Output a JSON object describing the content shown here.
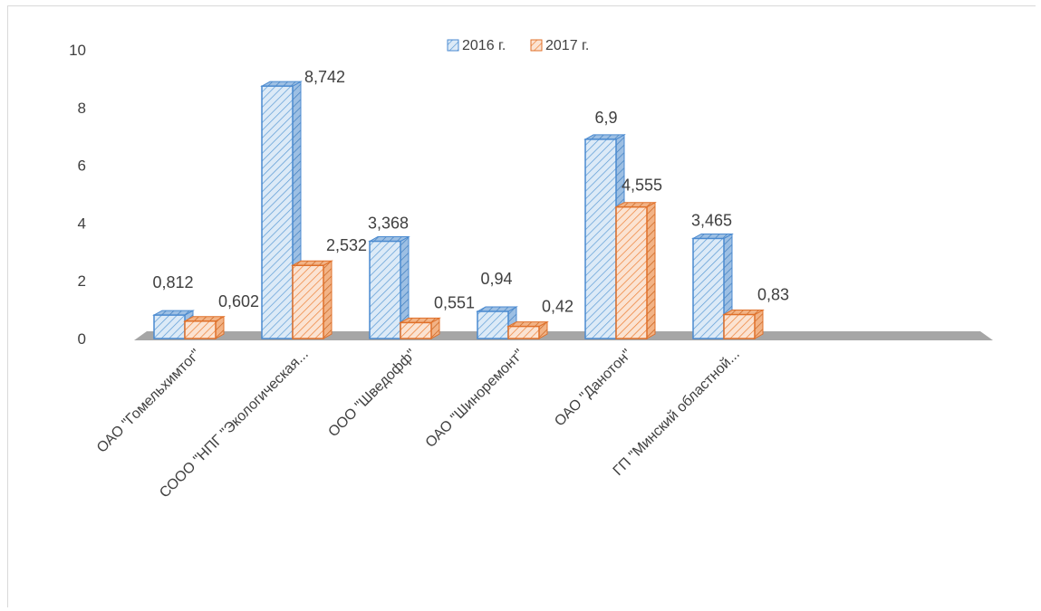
{
  "chart_data": {
    "type": "bar",
    "categories": [
      "ОАО \"Гомельхимтог\"",
      "СООО \"НПГ \"Экологическая...",
      "ООО \"Шведофф\"",
      "ОАО \"Шиноремонт\"",
      "ОАО \"Данотон\"",
      "ГП \"Минский областной..."
    ],
    "series": [
      {
        "name": "2016 г.",
        "values": [
          0.812,
          8.742,
          3.368,
          0.94,
          6.9,
          3.465
        ],
        "labels": [
          "0,812",
          "8,742",
          "3,368",
          "0,94",
          "6,9",
          "3,465"
        ],
        "color": "#5b9bd5"
      },
      {
        "name": "2017 г.",
        "values": [
          0.602,
          2.532,
          0.551,
          0.42,
          4.555,
          0.83
        ],
        "labels": [
          "0,602",
          "2,532",
          "0,551",
          "0,42",
          "4,555",
          "0,83"
        ],
        "color": "#ed7d31"
      }
    ],
    "yticks": [
      "0",
      "2",
      "4",
      "6",
      "8",
      "10"
    ],
    "ylim": [
      0,
      10
    ],
    "legend_position": "top-center",
    "style": "3d-hatched"
  }
}
